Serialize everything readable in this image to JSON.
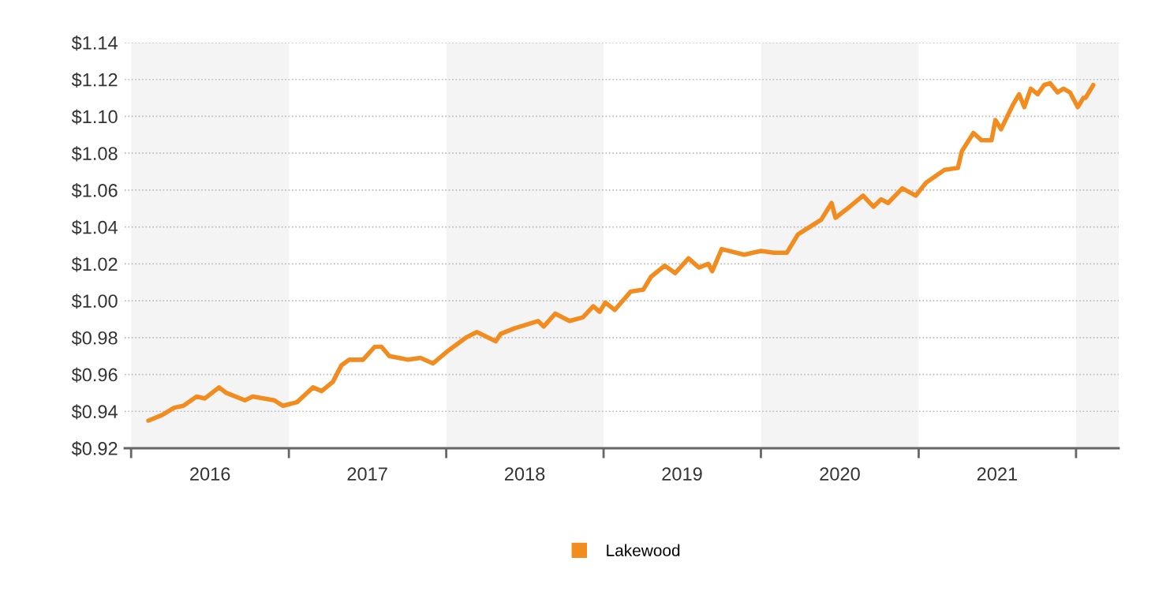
{
  "chart_data": {
    "type": "line",
    "xlim": [
      "2015-12-17",
      "2022-04-10"
    ],
    "ylim": [
      0.92,
      1.14
    ],
    "yticks": [
      {
        "value": 0.92,
        "label": "$0.92"
      },
      {
        "value": 0.94,
        "label": "$0.94"
      },
      {
        "value": 0.96,
        "label": "$0.96"
      },
      {
        "value": 0.98,
        "label": "$0.98"
      },
      {
        "value": 1.0,
        "label": "$1.00"
      },
      {
        "value": 1.02,
        "label": "$1.02"
      },
      {
        "value": 1.04,
        "label": "$1.04"
      },
      {
        "value": 1.06,
        "label": "$1.06"
      },
      {
        "value": 1.08,
        "label": "$1.08"
      },
      {
        "value": 1.1,
        "label": "$1.10"
      },
      {
        "value": 1.12,
        "label": "$1.12"
      },
      {
        "value": 1.14,
        "label": "$1.14"
      }
    ],
    "xticks": [
      {
        "value": "2016-01-01",
        "label": null
      },
      {
        "value": "2017-01-01",
        "label": null
      },
      {
        "value": "2018-01-01",
        "label": null
      },
      {
        "value": "2019-01-01",
        "label": null
      },
      {
        "value": "2020-01-01",
        "label": null
      },
      {
        "value": "2021-01-01",
        "label": null
      },
      {
        "value": "2022-01-01",
        "label": null
      },
      {
        "value": "2016-07-02",
        "label": "2016"
      },
      {
        "value": "2017-07-02",
        "label": "2017"
      },
      {
        "value": "2018-07-02",
        "label": "2018"
      },
      {
        "value": "2019-07-02",
        "label": "2019"
      },
      {
        "value": "2020-07-02",
        "label": "2020"
      },
      {
        "value": "2021-07-02",
        "label": "2021"
      }
    ],
    "bands": [
      {
        "axis": "x",
        "from": "2016-01-01",
        "to": "2017-01-01",
        "color": "#f4f4f4"
      },
      {
        "axis": "x",
        "from": "2018-01-01",
        "to": "2019-01-01",
        "color": "#f4f4f4"
      },
      {
        "axis": "x",
        "from": "2020-01-01",
        "to": "2021-01-01",
        "color": "#f4f4f4"
      },
      {
        "axis": "x",
        "from": "2022-01-01",
        "to": "2022-04-10",
        "color": "#f4f4f4"
      }
    ],
    "grid": "y",
    "legend": "bottom",
    "marker": "none",
    "line_style": "solid",
    "series": [
      {
        "name": "Lakewood",
        "color": "#f28c1e",
        "x": [
          "2016-02-10",
          "2016-03-13",
          "2016-04-10",
          "2016-05-01",
          "2016-06-01",
          "2016-06-20",
          "2016-07-23",
          "2016-08-09",
          "2016-09-21",
          "2016-10-09",
          "2016-11-28",
          "2016-12-18",
          "2017-01-20",
          "2017-02-26",
          "2017-03-18",
          "2017-04-13",
          "2017-05-03",
          "2017-05-21",
          "2017-06-22",
          "2017-07-19",
          "2017-08-04",
          "2017-08-22",
          "2017-10-05",
          "2017-11-02",
          "2017-12-01",
          "2018-01-06",
          "2018-02-16",
          "2018-03-13",
          "2018-04-26",
          "2018-05-07",
          "2018-06-08",
          "2018-08-02",
          "2018-08-15",
          "2018-09-11",
          "2018-10-14",
          "2018-11-14",
          "2018-12-08",
          "2018-12-23",
          "2019-01-05",
          "2019-01-27",
          "2019-03-05",
          "2019-04-03",
          "2019-04-21",
          "2019-05-23",
          "2019-06-16",
          "2019-07-17",
          "2019-08-10",
          "2019-09-01",
          "2019-09-10",
          "2019-10-02",
          "2019-11-23",
          "2020-01-01",
          "2020-01-31",
          "2020-03-01",
          "2020-03-27",
          "2020-05-20",
          "2020-06-13",
          "2020-06-22",
          "2020-07-25",
          "2020-08-25",
          "2020-09-18",
          "2020-10-06",
          "2020-10-22",
          "2020-11-24",
          "2020-12-25",
          "2021-01-18",
          "2021-03-02",
          "2021-04-02",
          "2021-04-11",
          "2021-05-08",
          "2021-05-27",
          "2021-06-19",
          "2021-06-28",
          "2021-07-11",
          "2021-08-07",
          "2021-08-22",
          "2021-09-03",
          "2021-09-18",
          "2021-10-04",
          "2021-10-19",
          "2021-11-02",
          "2021-11-19",
          "2021-12-03",
          "2021-12-18",
          "2022-01-05",
          "2022-01-18",
          "2022-01-23",
          "2022-02-10"
        ],
        "values": [
          0.935,
          0.938,
          0.942,
          0.943,
          0.948,
          0.947,
          0.953,
          0.95,
          0.946,
          0.948,
          0.946,
          0.943,
          0.945,
          0.953,
          0.951,
          0.956,
          0.965,
          0.968,
          0.968,
          0.975,
          0.975,
          0.97,
          0.968,
          0.969,
          0.966,
          0.973,
          0.98,
          0.983,
          0.978,
          0.982,
          0.985,
          0.989,
          0.986,
          0.993,
          0.989,
          0.991,
          0.997,
          0.994,
          0.999,
          0.995,
          1.005,
          1.006,
          1.013,
          1.019,
          1.015,
          1.023,
          1.018,
          1.02,
          1.016,
          1.028,
          1.025,
          1.027,
          1.026,
          1.026,
          1.036,
          1.044,
          1.053,
          1.045,
          1.051,
          1.057,
          1.051,
          1.055,
          1.053,
          1.061,
          1.057,
          1.064,
          1.071,
          1.072,
          1.081,
          1.091,
          1.087,
          1.087,
          1.098,
          1.093,
          1.106,
          1.112,
          1.105,
          1.115,
          1.112,
          1.117,
          1.118,
          1.113,
          1.115,
          1.113,
          1.105,
          1.11,
          1.11,
          1.117
        ]
      }
    ]
  }
}
